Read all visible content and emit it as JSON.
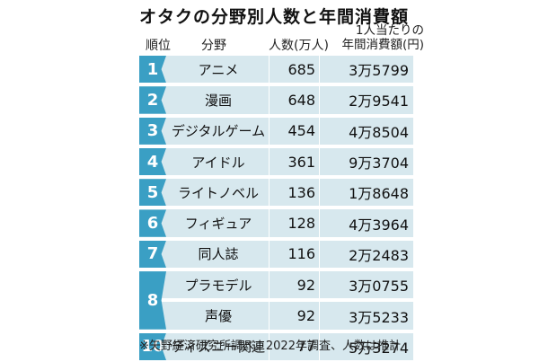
{
  "title": "オタクの分野別人数と年間消費額",
  "headers": {
    "rank": "順位",
    "field": "分野",
    "people": "人数(万人)",
    "spend_line1": "1人当たりの",
    "spend_line2": "年間消費額(円)"
  },
  "rows": [
    {
      "rank": "1",
      "field": "アニメ",
      "people": "685",
      "spend": "3万5799"
    },
    {
      "rank": "2",
      "field": "漫画",
      "people": "648",
      "spend": "2万9541"
    },
    {
      "rank": "3",
      "field": "デジタルゲーム",
      "people": "454",
      "spend": "4万8504"
    },
    {
      "rank": "4",
      "field": "アイドル",
      "people": "361",
      "spend": "9万3704"
    },
    {
      "rank": "5",
      "field": "ライトノベル",
      "people": "136",
      "spend": "1万8648"
    },
    {
      "rank": "6",
      "field": "フィギュア",
      "people": "128",
      "spend": "4万3964"
    },
    {
      "rank": "7",
      "field": "同人誌",
      "people": "116",
      "spend": "2万2483"
    },
    {
      "rank": "8",
      "field": "プラモデル",
      "people": "92",
      "spend": "3万0755"
    },
    {
      "rank": "",
      "field": "声優",
      "people": "92",
      "spend": "3万5233"
    },
    {
      "rank": "10",
      "field": "ディズニー関連",
      "people": "77",
      "spend": "5万3274"
    }
  ],
  "footnote": "※矢野経済研究所調べ。2022年調査、人数は推計"
}
